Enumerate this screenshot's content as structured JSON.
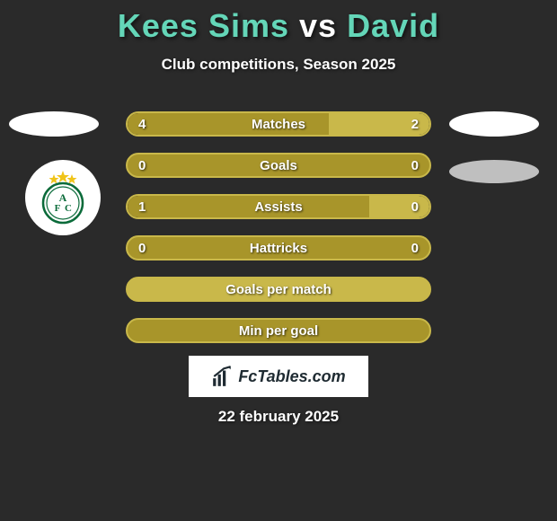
{
  "header": {
    "player1": "Kees Sims",
    "vs": "vs",
    "player2": "David",
    "player1_color": "#64d6b8",
    "player2_color": "#64d6b8",
    "vs_color": "#ffffff",
    "subtitle": "Club competitions, Season 2025"
  },
  "colors": {
    "background": "#2a2a2a",
    "bar_primary": "#a8952a",
    "bar_secondary": "#c9b84a",
    "bar_border": "#c9b84a",
    "text": "#ffffff"
  },
  "stats": [
    {
      "label": "Matches",
      "left_val": "4",
      "right_val": "2",
      "left_pct": 66.7,
      "right_pct": 33.3,
      "show_vals": true
    },
    {
      "label": "Goals",
      "left_val": "0",
      "right_val": "0",
      "left_pct": 50,
      "right_pct": 50,
      "show_vals": true,
      "single_fill": true
    },
    {
      "label": "Assists",
      "left_val": "1",
      "right_val": "0",
      "left_pct": 80,
      "right_pct": 20,
      "show_vals": true
    },
    {
      "label": "Hattricks",
      "left_val": "0",
      "right_val": "0",
      "left_pct": 50,
      "right_pct": 50,
      "show_vals": true,
      "single_fill": true
    },
    {
      "label": "Goals per match",
      "left_val": "",
      "right_val": "",
      "left_pct": 100,
      "right_pct": 0,
      "show_vals": false,
      "fill_secondary": true
    },
    {
      "label": "Min per goal",
      "left_val": "",
      "right_val": "",
      "left_pct": 100,
      "right_pct": 0,
      "show_vals": false,
      "single_fill": true
    }
  ],
  "fctables": {
    "text": "FcTables.com"
  },
  "footer": {
    "date": "22 february 2025"
  },
  "badge": {
    "stars_color": "#f0c419",
    "circle_border": "#0b6b3a",
    "circle_fill": "#ffffff",
    "letters_color": "#0b6b3a"
  }
}
